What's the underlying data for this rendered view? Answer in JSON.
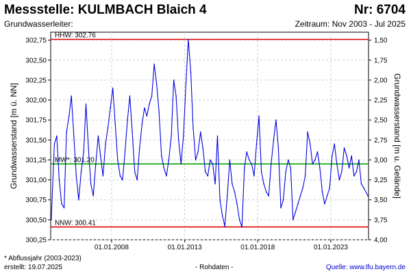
{
  "header": {
    "title": "Messstelle: KULMBACH Blaich 4",
    "number": "Nr: 6704",
    "aquifer_label": "Grundwasserleiter:",
    "period": "Zeitraum: Nov 2003 - Jul 2025"
  },
  "footer": {
    "footnote": "* Abflussjahr (2003-2023)",
    "created": "erstellt:  19.07.2025",
    "raw_data": "- Rohdaten -",
    "source": "Quelle: www.lfu.bayern.de"
  },
  "colors": {
    "series": "#0000e0",
    "extreme_lines": "#e00000",
    "mean_line": "#00a000",
    "grid": "#cccccc"
  },
  "chart_data": {
    "type": "line",
    "ylabel_left": "Grundwasserstand [m ü. NN]",
    "ylabel_right": "Grundwasserstand [m u. Gelände]",
    "ylim": [
      300.25,
      302.85
    ],
    "yticks": [
      300.25,
      300.5,
      300.75,
      301.0,
      301.25,
      301.5,
      301.75,
      302.0,
      302.25,
      302.5,
      302.75
    ],
    "ytick_labels": [
      "300,25",
      "300,50",
      "300,75",
      "301,00",
      "301,25",
      "301,50",
      "301,75",
      "302,00",
      "302,25",
      "302,50",
      "302,75"
    ],
    "xlim": [
      "2003-11-01",
      "2025-07-31"
    ],
    "xticks": [
      "2008-01-01",
      "2013-01-01",
      "2018-01-01",
      "2023-01-01"
    ],
    "xtick_labels": [
      "01.01.2008",
      "01.01.2013",
      "01.01.2018",
      "01.01.2023"
    ],
    "right_axis": {
      "ticks": [
        1.5,
        1.75,
        2.0,
        2.25,
        2.5,
        2.75,
        3.0,
        3.25,
        3.5,
        3.75,
        4.0
      ],
      "tick_labels": [
        "1,50",
        "1,75",
        "2,00",
        "2,25",
        "2,50",
        "2,75",
        "3,00",
        "3,25",
        "3,50",
        "3,75",
        "4,00"
      ],
      "reference_level": 304.25
    },
    "reference_lines": [
      {
        "label": "HHW: 302.76",
        "value": 302.76,
        "kind": "max"
      },
      {
        "label": "MW*: 301.20",
        "value": 301.2,
        "kind": "mean"
      },
      {
        "label": "NNW: 300.41",
        "value": 300.41,
        "kind": "min"
      }
    ],
    "grid": true,
    "series": [
      {
        "x": [
          "2003-11-15",
          "2004-02-01",
          "2004-04-01",
          "2004-06-01",
          "2004-08-01",
          "2004-10-01",
          "2004-12-01",
          "2005-02-01",
          "2005-04-01",
          "2005-06-01",
          "2005-08-01",
          "2005-10-01",
          "2005-12-01",
          "2006-02-01",
          "2006-04-01",
          "2006-06-01",
          "2006-08-01",
          "2006-10-01",
          "2006-12-01",
          "2007-02-01",
          "2007-04-01",
          "2007-06-01",
          "2007-08-01",
          "2007-10-01",
          "2007-12-01",
          "2008-02-01",
          "2008-04-01",
          "2008-06-01",
          "2008-08-01",
          "2008-10-01",
          "2008-12-01",
          "2009-02-01",
          "2009-04-01",
          "2009-06-01",
          "2009-08-01",
          "2009-10-01",
          "2009-12-01",
          "2010-02-01",
          "2010-04-01",
          "2010-06-01",
          "2010-08-01",
          "2010-10-01",
          "2010-12-01",
          "2011-02-01",
          "2011-04-01",
          "2011-06-01",
          "2011-08-01",
          "2011-10-01",
          "2011-12-01",
          "2012-02-01",
          "2012-04-01",
          "2012-06-01",
          "2012-08-01",
          "2012-10-01",
          "2012-12-01",
          "2013-02-01",
          "2013-04-01",
          "2013-06-01",
          "2013-08-01",
          "2013-10-01",
          "2013-12-01",
          "2014-02-01",
          "2014-04-01",
          "2014-06-01",
          "2014-08-01",
          "2014-10-01",
          "2014-12-01",
          "2015-02-01",
          "2015-04-01",
          "2015-06-01",
          "2015-08-01",
          "2015-10-01",
          "2015-12-01",
          "2016-02-01",
          "2016-04-01",
          "2016-06-01",
          "2016-08-01",
          "2016-10-01",
          "2016-12-01",
          "2017-02-01",
          "2017-04-01",
          "2017-06-01",
          "2017-08-01",
          "2017-10-01",
          "2017-12-01",
          "2018-02-01",
          "2018-04-01",
          "2018-06-01",
          "2018-08-01",
          "2018-10-01",
          "2018-12-01",
          "2019-02-01",
          "2019-04-01",
          "2019-06-01",
          "2019-08-01",
          "2019-10-01",
          "2019-12-01",
          "2020-02-01",
          "2020-04-01",
          "2020-06-01",
          "2020-08-01",
          "2020-10-01",
          "2020-12-01",
          "2021-02-01",
          "2021-04-01",
          "2021-06-01",
          "2021-08-01",
          "2021-10-01",
          "2021-12-01",
          "2022-02-01",
          "2022-04-01",
          "2022-06-01",
          "2022-08-01",
          "2022-10-01",
          "2022-12-01",
          "2023-02-01",
          "2023-04-01",
          "2023-06-01",
          "2023-08-01",
          "2023-10-01",
          "2023-12-01",
          "2024-02-01",
          "2024-04-01",
          "2024-06-01",
          "2024-08-01",
          "2024-10-01",
          "2024-12-01",
          "2025-02-01",
          "2025-04-01",
          "2025-07-15"
        ],
        "y": [
          300.5,
          301.45,
          301.55,
          301.0,
          300.7,
          300.65,
          301.6,
          301.8,
          302.05,
          301.55,
          301.05,
          300.75,
          301.1,
          301.35,
          301.95,
          301.4,
          300.95,
          300.8,
          301.2,
          301.55,
          301.3,
          301.05,
          301.45,
          301.65,
          301.9,
          302.15,
          301.7,
          301.25,
          301.05,
          301.0,
          301.35,
          301.75,
          302.05,
          301.6,
          301.1,
          301.0,
          301.4,
          301.7,
          301.9,
          301.8,
          301.95,
          302.05,
          302.45,
          302.2,
          301.85,
          301.3,
          301.15,
          301.05,
          301.25,
          301.55,
          302.25,
          302.05,
          301.5,
          301.2,
          301.55,
          302.2,
          302.76,
          302.35,
          301.65,
          301.25,
          301.35,
          301.6,
          301.4,
          301.1,
          301.05,
          301.25,
          301.2,
          300.95,
          301.55,
          300.75,
          300.55,
          300.42,
          300.8,
          301.25,
          300.95,
          300.85,
          300.7,
          300.5,
          300.41,
          301.15,
          301.35,
          301.25,
          301.2,
          301.05,
          301.45,
          301.8,
          301.1,
          300.95,
          300.85,
          300.8,
          301.2,
          301.5,
          301.75,
          301.4,
          300.65,
          300.75,
          301.1,
          301.25,
          301.15,
          300.5,
          300.6,
          300.7,
          300.8,
          300.9,
          301.05,
          301.6,
          301.45,
          301.2,
          301.25,
          301.35,
          301.15,
          300.85,
          300.7,
          300.8,
          300.9,
          301.3,
          301.45,
          301.2,
          301.0,
          301.1,
          301.4,
          301.3,
          301.15,
          301.3,
          301.05,
          301.1,
          301.25,
          300.95,
          300.9,
          300.8
        ]
      }
    ]
  }
}
